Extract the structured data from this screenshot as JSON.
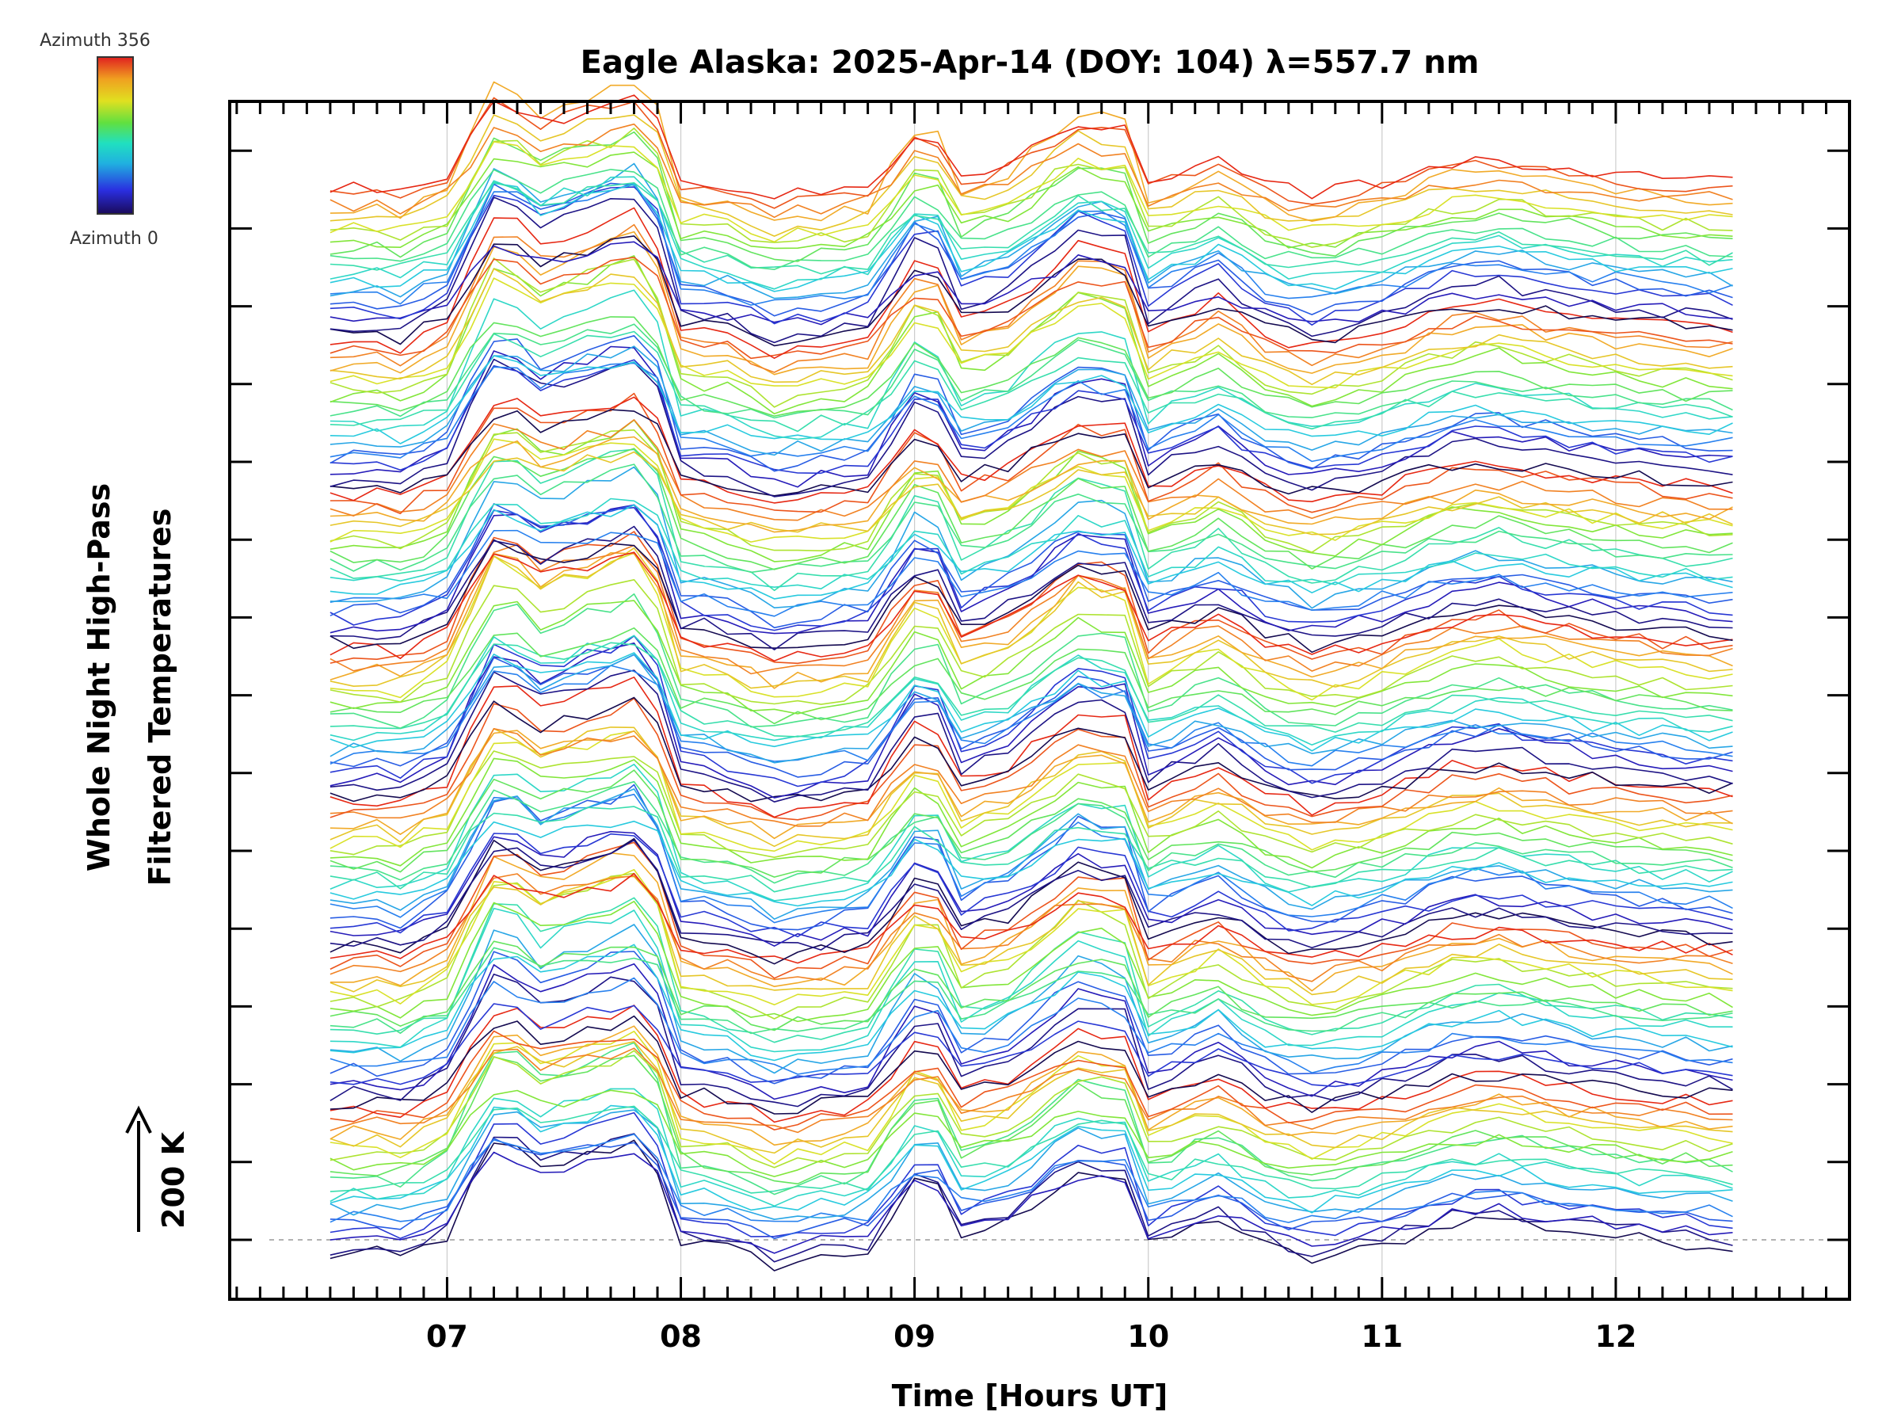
{
  "chart_data": {
    "type": "line",
    "title": "Eagle Alaska: 2025-Apr-14 (DOY: 104) λ=557.7 nm",
    "xlabel": "Time [Hours UT]",
    "ylabel_line1": "Whole Night High-Pass",
    "ylabel_line2": "Filtered Temperatures",
    "scale_label": "200 K",
    "colorbar": {
      "top_label": "Azimuth 356",
      "bottom_label": "Azimuth 0",
      "colormap": "rainbow",
      "min": 0,
      "max": 356
    },
    "xlim": [
      6.07,
      13.0
    ],
    "x_ticks": [
      7,
      8,
      9,
      10,
      11,
      12
    ],
    "x_tick_labels": [
      "07",
      "08",
      "09",
      "10",
      "11",
      "12"
    ],
    "grid": "vertical dotted lines at labelled hours",
    "azimuth_groups": 7,
    "traces_per_group": 20,
    "trace_offset_note": "traces offset vertically by azimuth, stacked",
    "time_start": 6.5,
    "time_end": 12.5,
    "time_step": 0.1,
    "common_profile_x": [
      6.5,
      6.7,
      6.8,
      7.0,
      7.1,
      7.2,
      7.3,
      7.4,
      7.6,
      7.8,
      7.9,
      8.0,
      8.2,
      8.4,
      8.6,
      8.8,
      9.0,
      9.05,
      9.1,
      9.2,
      9.4,
      9.7,
      9.9,
      10.0,
      10.3,
      10.5,
      10.7,
      11.0,
      11.3,
      11.5,
      11.7,
      12.0,
      12.2,
      12.5
    ],
    "common_profile_y": [
      0,
      5,
      -5,
      40,
      140,
      230,
      220,
      180,
      210,
      240,
      180,
      30,
      15,
      -20,
      -5,
      10,
      150,
      260,
      140,
      40,
      70,
      180,
      160,
      20,
      80,
      20,
      -10,
      20,
      70,
      80,
      60,
      40,
      30,
      20
    ]
  }
}
